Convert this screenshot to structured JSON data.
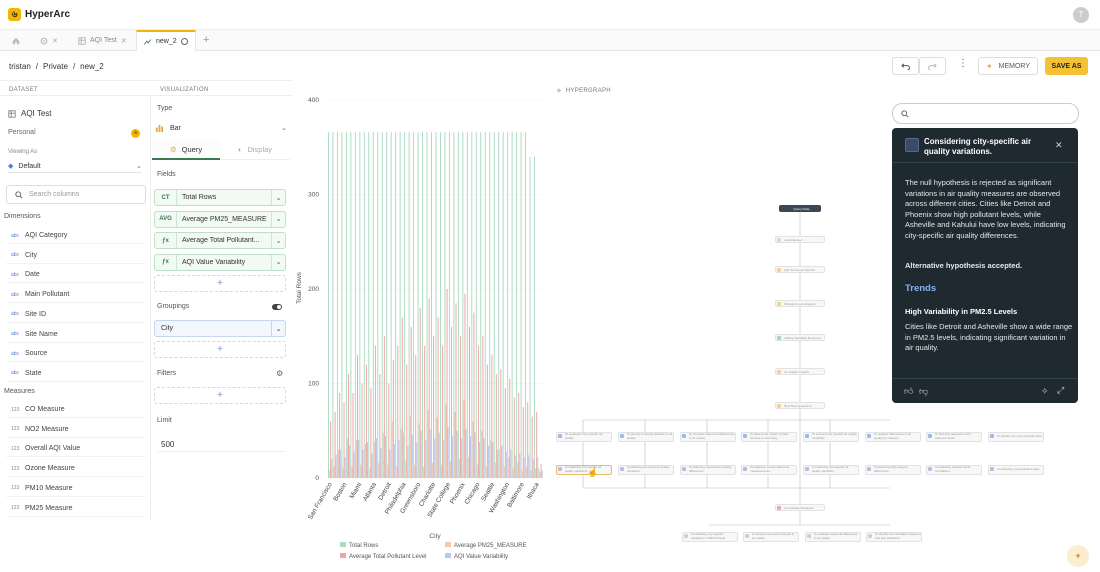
{
  "app": {
    "title": "HyperArc",
    "logo_glyph": "৬",
    "avatar_initial": "T"
  },
  "tabs": [
    {
      "label": "",
      "icon": "home-icon"
    },
    {
      "label": "",
      "icon": "gear-icon"
    },
    {
      "label": "AQI Test",
      "icon": "table-icon"
    },
    {
      "label": "new_2",
      "icon": "chart-icon"
    }
  ],
  "breadcrumb": [
    "tristan",
    "/",
    "Private",
    "/",
    "new_2"
  ],
  "toolbar": {
    "memory_label": "MEMORY",
    "save_as_label": "SAVE AS"
  },
  "dataset": {
    "header": "DATASET",
    "name": "AQI Test",
    "scope": "Personal",
    "viewing_as_label": "Viewing As",
    "viewing_as_value": "Default",
    "search_placeholder": "Search columns",
    "dimensions_label": "Dimensions",
    "dimensions": [
      "AQI Category",
      "City",
      "Date",
      "Main Pollutant",
      "Site ID",
      "Site Name",
      "Source",
      "State"
    ],
    "measures_label": "Measures",
    "measures": [
      "CO Measure",
      "NO2 Measure",
      "Overall AQI Value",
      "Ozone Measure",
      "PM10 Measure",
      "PM25 Measure"
    ]
  },
  "visualization": {
    "header": "VISUALIZATION",
    "type_label": "Type",
    "type_value": "Bar",
    "tab_query": "Query",
    "tab_display": "Display",
    "fields_label": "Fields",
    "fields": [
      {
        "tag": "CT",
        "name": "Total Rows"
      },
      {
        "tag": "AVG",
        "name": "Average PM25_MEASURE"
      },
      {
        "tag": "ƒx",
        "name": "Average Total Pollutant..."
      },
      {
        "tag": "ƒx",
        "name": "AQI Value Variability"
      }
    ],
    "groupings_label": "Groupings",
    "groupings": [
      "City"
    ],
    "filters_label": "Filters",
    "limit_label": "Limit",
    "limit_value": "500"
  },
  "chart_data": {
    "type": "bar",
    "ylabel": "Total Rows",
    "xlabel": "City",
    "ylim": [
      0,
      400
    ],
    "yticks": [
      0,
      100,
      200,
      300,
      400
    ],
    "tick_labels": [
      "San Francisco",
      "Boston",
      "Miami",
      "Atlanta",
      "Detroit",
      "Philadelphia",
      "Greensboro",
      "Charlotte",
      "State College",
      "Phoenix",
      "Chicago",
      "Seattle",
      "Washington",
      "Baltimore",
      "Ithaca"
    ],
    "legend_position": "bottom",
    "series": [
      {
        "name": "Total Rows",
        "color": "#a9dcc2"
      },
      {
        "name": "Average PM25_MEASURE",
        "color": "#f6c7a8"
      },
      {
        "name": "Average Total Pollutant Level",
        "color": "#f2a3a3"
      },
      {
        "name": "AQI Value Variability",
        "color": "#b9c8ee"
      }
    ],
    "bar_count": 48,
    "total_rows": [
      366,
      366,
      366,
      366,
      366,
      366,
      366,
      366,
      366,
      366,
      366,
      366,
      366,
      366,
      366,
      366,
      366,
      366,
      366,
      366,
      366,
      366,
      366,
      366,
      366,
      366,
      366,
      366,
      366,
      366,
      366,
      366,
      366,
      366,
      366,
      366,
      366,
      366,
      366,
      366,
      366,
      366,
      366,
      366,
      366,
      340,
      340,
      10
    ],
    "avg_pm25": [
      8,
      12,
      30,
      10,
      42,
      12,
      40,
      14,
      36,
      10,
      38,
      16,
      48,
      14,
      60,
      12,
      52,
      18,
      66,
      14,
      58,
      12,
      72,
      16,
      64,
      14,
      78,
      18,
      70,
      20,
      82,
      22,
      60,
      14,
      50,
      12,
      40,
      16,
      30,
      12,
      22,
      10,
      16,
      8,
      12,
      8,
      10,
      6
    ],
    "avg_total_pollutant": [
      60,
      70,
      90,
      80,
      110,
      90,
      130,
      100,
      120,
      95,
      140,
      110,
      150,
      100,
      125,
      140,
      170,
      120,
      160,
      130,
      180,
      140,
      190,
      150,
      170,
      140,
      200,
      160,
      185,
      150,
      195,
      160,
      175,
      140,
      150,
      120,
      130,
      110,
      115,
      95,
      105,
      85,
      90,
      75,
      80,
      65,
      70,
      15
    ],
    "aqi_variability": [
      20,
      25,
      30,
      22,
      35,
      28,
      40,
      30,
      38,
      26,
      42,
      32,
      44,
      30,
      36,
      40,
      48,
      34,
      46,
      38,
      50,
      40,
      52,
      42,
      48,
      40,
      54,
      44,
      50,
      42,
      52,
      44,
      48,
      38,
      42,
      34,
      38,
      30,
      34,
      28,
      30,
      24,
      26,
      22,
      24,
      20,
      22,
      8
    ]
  },
  "hypergraph": {
    "header": "HYPERGRAPH",
    "search_placeholder": "",
    "nodes": [
      {
        "label": "Query Node",
        "kind": "root"
      },
      {
        "label": "Load Dataset",
        "kind": "grey"
      },
      {
        "label": "AQI Trend over Months",
        "kind": "yellow"
      },
      {
        "label": "Pollutant Level Analysis",
        "kind": "yellow"
      },
      {
        "label": "Adding Variability Measures",
        "kind": "green"
      },
      {
        "label": "Air Quality Insights",
        "kind": "yellow"
      },
      {
        "label": "Next Best Questions",
        "kind": "yellow"
      },
      {
        "label": "Consolidated Analysis",
        "kind": "red"
      }
    ],
    "row1": [
      "To evaluate if the specific air quality",
      "To identify temporal pollution in air quality",
      "To compare sites level differences in air quality",
      "To assess the impact of data sources on accuracy",
      "To examine the specific air quality variability",
      "To analyze differences in air quality by category",
      "To find AQI categories with pollutant levels",
      "To identify the most polluted cities"
    ],
    "row2": [
      "Considering city-specific air quality variations",
      "Considering temporal air quality variations",
      "Considering site-level air quality differences",
      "Considering source-based air measurements",
      "Considering site-specific air quality variability",
      "Considering AQI category differences",
      "Considering pollutant level correlations",
      "Considering most polluted cities"
    ],
    "row3": [
      "Considering city-specific variations in PM2.5 levels",
      "To analyze temporal changes in air quality",
      "To evaluate seasonal differences in air quality",
      "To identify the correlation between AQI and pollutants"
    ]
  },
  "insight": {
    "title": "Considering city-specific air quality variations.",
    "paragraph": "The null hypothesis is rejected as significant variations in air quality measures are observed across different cities. Cities like Detroit and Phoenix show high pollutant levels, while Asheville and Kahului have low levels, indicating city-specific air quality differences.",
    "conclusion": "Alternative hypothesis accepted.",
    "trends_heading": "Trends",
    "trend_title": "High Variability in PM2.5 Levels",
    "trend_body": "Cities like Detroit and Asheville show a wide range in PM2.5 levels, indicating significant variation in air quality."
  },
  "colors": {
    "accent": "#f5c033",
    "panel_dark": "#1f2a30",
    "link": "#7fb2f0"
  }
}
